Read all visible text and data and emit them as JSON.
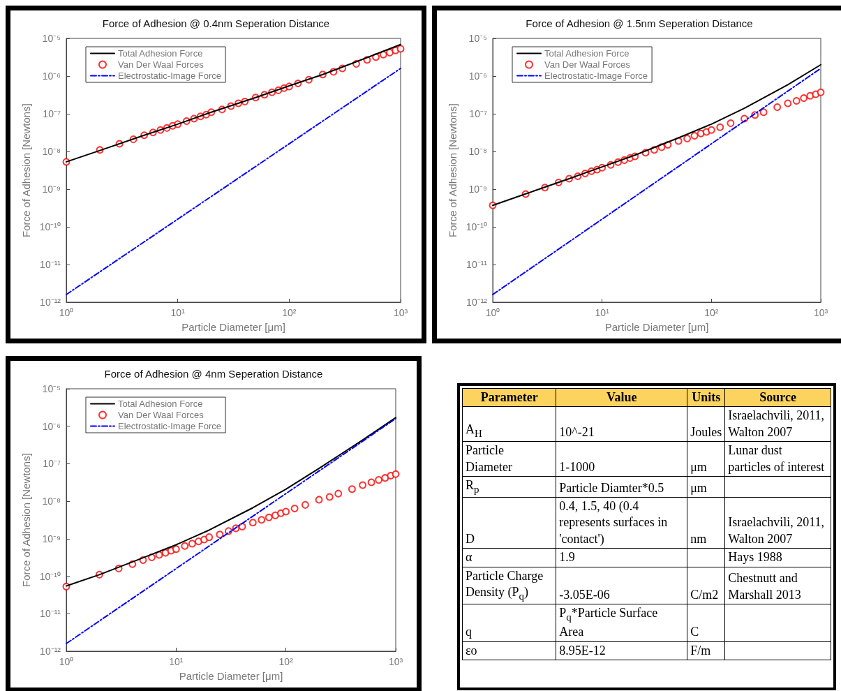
{
  "chart_data": [
    {
      "type": "line",
      "title": "Force of Adhesion @ 0.4nm Seperation Distance",
      "xlabel": "Particle Diameter [μm]",
      "ylabel": "Force of Adhesion [Newtons]",
      "log": "xy",
      "grid": false,
      "legend": "top left",
      "xlim": [
        1,
        1000
      ],
      "ylim": [
        1e-12,
        1e-05
      ],
      "xticks": [
        {
          "value": 1,
          "label": "10⁰"
        },
        {
          "value": 10,
          "label": "10¹"
        },
        {
          "value": 100,
          "label": "10²"
        },
        {
          "value": 1000,
          "label": "10³"
        }
      ],
      "yticks": [
        {
          "value": 1e-12,
          "label": "10⁻¹²"
        },
        {
          "value": 1e-11,
          "label": "10⁻¹¹"
        },
        {
          "value": 1e-10,
          "label": "10⁻¹⁰"
        },
        {
          "value": 1e-09,
          "label": "10⁻⁹"
        },
        {
          "value": 1e-08,
          "label": "10⁻⁸"
        },
        {
          "value": 1e-07,
          "label": "10⁻⁷"
        },
        {
          "value": 1e-06,
          "label": "10⁻⁶"
        },
        {
          "value": 1e-05,
          "label": "10⁻⁵"
        }
      ],
      "series": [
        {
          "name": "Total Adhesion Force",
          "type": "line",
          "line_style": "solid",
          "color": "#000000",
          "x": [
            1,
            2,
            5,
            10,
            20,
            50,
            100,
            200,
            500,
            1000
          ],
          "values": [
            5.3e-09,
            1.06e-08,
            2.7e-08,
            5.3e-08,
            1.1e-07,
            2.7e-07,
            5.5e-07,
            1.1e-06,
            3.1e-06,
            6.9e-06
          ]
        },
        {
          "name": "Van Der Waal Forces",
          "type": "scatter",
          "marker": "circle",
          "color": "#ff0000",
          "x": [
            1,
            2,
            3,
            4,
            5,
            6,
            7,
            8,
            9,
            10,
            12,
            14,
            16,
            18,
            20,
            25,
            30,
            35,
            40,
            50,
            60,
            70,
            80,
            90,
            100,
            120,
            150,
            200,
            250,
            300,
            400,
            500,
            600,
            700,
            800,
            900,
            1000
          ],
          "values": [
            5.3e-09,
            1.1e-08,
            1.6e-08,
            2.1e-08,
            2.7e-08,
            3.2e-08,
            3.7e-08,
            4.2e-08,
            4.8e-08,
            5.3e-08,
            6.4e-08,
            7.4e-08,
            8.5e-08,
            9.5e-08,
            1.1e-07,
            1.3e-07,
            1.6e-07,
            1.9e-07,
            2.1e-07,
            2.7e-07,
            3.2e-07,
            3.7e-07,
            4.2e-07,
            4.8e-07,
            5.3e-07,
            6.4e-07,
            8e-07,
            1.1e-06,
            1.3e-06,
            1.6e-06,
            2.1e-06,
            2.7e-06,
            3.2e-06,
            3.7e-06,
            4.2e-06,
            4.8e-06,
            5.3e-06
          ]
        },
        {
          "name": "Electrostatic-Image Force",
          "type": "line",
          "line_style": "dashed",
          "color": "#0000ff",
          "x": [
            1,
            1000
          ],
          "values": [
            1.6e-12,
            1.6e-06
          ]
        }
      ]
    },
    {
      "type": "line",
      "title": "Force of Adhesion @ 1.5nm Seperation Distance",
      "xlabel": "Particle Diameter [μm]",
      "ylabel": "Force of Adhesion [Newtons]",
      "log": "xy",
      "grid": false,
      "legend": "top left",
      "xlim": [
        1,
        1000
      ],
      "ylim": [
        1e-12,
        1e-05
      ],
      "xticks": [
        {
          "value": 1,
          "label": "10⁰"
        },
        {
          "value": 10,
          "label": "10¹"
        },
        {
          "value": 100,
          "label": "10²"
        },
        {
          "value": 1000,
          "label": "10³"
        }
      ],
      "yticks": [
        {
          "value": 1e-12,
          "label": "10⁻¹²"
        },
        {
          "value": 1e-11,
          "label": "10⁻¹¹"
        },
        {
          "value": 1e-10,
          "label": "10⁻¹⁰"
        },
        {
          "value": 1e-09,
          "label": "10⁻⁹"
        },
        {
          "value": 1e-08,
          "label": "10⁻⁸"
        },
        {
          "value": 1e-07,
          "label": "10⁻⁷"
        },
        {
          "value": 1e-06,
          "label": "10⁻⁶"
        },
        {
          "value": 1e-05,
          "label": "10⁻⁵"
        }
      ],
      "series": [
        {
          "name": "Total Adhesion Force",
          "type": "line",
          "line_style": "solid",
          "color": "#000000",
          "x": [
            1,
            2,
            5,
            10,
            20,
            50,
            100,
            200,
            500,
            1000
          ],
          "values": [
            3.7e-10,
            7.5e-10,
            1.9e-09,
            3.9e-09,
            8e-09,
            2.3e-08,
            5.3e-08,
            1.4e-07,
            5.9e-07,
            2e-06
          ]
        },
        {
          "name": "Van Der Waal Forces",
          "type": "scatter",
          "marker": "circle",
          "color": "#ff0000",
          "x": [
            1,
            2,
            3,
            4,
            5,
            6,
            7,
            8,
            9,
            10,
            12,
            14,
            16,
            18,
            20,
            25,
            30,
            35,
            40,
            50,
            60,
            70,
            80,
            90,
            100,
            120,
            150,
            200,
            250,
            300,
            400,
            500,
            600,
            700,
            800,
            900,
            1000
          ],
          "values": [
            3.7e-10,
            7.4e-10,
            1.1e-09,
            1.5e-09,
            1.9e-09,
            2.2e-09,
            2.6e-09,
            3e-09,
            3.3e-09,
            3.7e-09,
            4.4e-09,
            5.2e-09,
            5.9e-09,
            6.7e-09,
            7.4e-09,
            9.3e-09,
            1.1e-08,
            1.3e-08,
            1.5e-08,
            1.9e-08,
            2.2e-08,
            2.6e-08,
            3e-08,
            3.3e-08,
            3.7e-08,
            4.4e-08,
            5.6e-08,
            7.4e-08,
            9.3e-08,
            1.1e-07,
            1.5e-07,
            1.9e-07,
            2.2e-07,
            2.6e-07,
            3e-07,
            3.3e-07,
            3.7e-07
          ]
        },
        {
          "name": "Electrostatic-Image Force",
          "type": "line",
          "line_style": "dashed",
          "color": "#0000ff",
          "x": [
            1,
            1000
          ],
          "values": [
            1.6e-12,
            1.6e-06
          ]
        }
      ]
    },
    {
      "type": "line",
      "title": "Force of Adhesion @ 4nm Seperation Distance",
      "xlabel": "Particle Diameter [μm]",
      "ylabel": "Force of Adhesion [Newtons]",
      "log": "xy",
      "grid": false,
      "legend": "top left",
      "xlim": [
        1,
        1000
      ],
      "ylim": [
        1e-12,
        1e-05
      ],
      "xticks": [
        {
          "value": 1,
          "label": "10⁰"
        },
        {
          "value": 10,
          "label": "10¹"
        },
        {
          "value": 100,
          "label": "10²"
        },
        {
          "value": 1000,
          "label": "10³"
        }
      ],
      "yticks": [
        {
          "value": 1e-12,
          "label": "10⁻¹²"
        },
        {
          "value": 1e-11,
          "label": "10⁻¹¹"
        },
        {
          "value": 1e-10,
          "label": "10⁻¹⁰"
        },
        {
          "value": 1e-09,
          "label": "10⁻⁹"
        },
        {
          "value": 1e-08,
          "label": "10⁻⁸"
        },
        {
          "value": 1e-07,
          "label": "10⁻⁷"
        },
        {
          "value": 1e-06,
          "label": "10⁻⁶"
        },
        {
          "value": 1e-05,
          "label": "10⁻⁵"
        }
      ],
      "series": [
        {
          "name": "Total Adhesion Force",
          "type": "line",
          "line_style": "solid",
          "color": "#000000",
          "x": [
            1,
            2,
            5,
            10,
            20,
            50,
            100,
            200,
            500,
            1000
          ],
          "values": [
            5.5e-11,
            1.1e-10,
            3.1e-10,
            6.9e-10,
            1.7e-09,
            6.7e-09,
            2.1e-08,
            7.5e-08,
            4.3e-07,
            1.7e-06
          ]
        },
        {
          "name": "Van Der Waal Forces",
          "type": "scatter",
          "marker": "circle",
          "color": "#ff0000",
          "x": [
            1,
            2,
            3,
            4,
            5,
            6,
            7,
            8,
            9,
            10,
            12,
            14,
            16,
            18,
            20,
            25,
            30,
            35,
            40,
            50,
            60,
            70,
            80,
            90,
            100,
            120,
            150,
            200,
            250,
            300,
            400,
            500,
            600,
            700,
            800,
            900,
            1000
          ],
          "values": [
            5.3e-11,
            1.1e-10,
            1.6e-10,
            2.1e-10,
            2.7e-10,
            3.2e-10,
            3.7e-10,
            4.2e-10,
            4.8e-10,
            5.3e-10,
            6.4e-10,
            7.4e-10,
            8.5e-10,
            9.5e-10,
            1.1e-09,
            1.3e-09,
            1.6e-09,
            1.9e-09,
            2.1e-09,
            2.7e-09,
            3.2e-09,
            3.7e-09,
            4.2e-09,
            4.8e-09,
            5.3e-09,
            6.4e-09,
            8e-09,
            1.1e-08,
            1.3e-08,
            1.6e-08,
            2.1e-08,
            2.7e-08,
            3.2e-08,
            3.7e-08,
            4.2e-08,
            4.8e-08,
            5.3e-08
          ]
        },
        {
          "name": "Electrostatic-Image Force",
          "type": "line",
          "line_style": "dashed",
          "color": "#0000ff",
          "x": [
            1,
            1000
          ],
          "values": [
            1.6e-12,
            1.6e-06
          ]
        }
      ]
    },
    {
      "type": "other",
      "color": "#fcd35f",
      "categories": [
        "Parameter",
        "Value",
        "Units",
        "Source"
      ],
      "cell_labels": [
        [
          "A$_{H}$",
          "10^-21",
          "Joules",
          "Israelachvili, 2011, Walton 2007"
        ],
        [
          "Particle Diameter",
          "1-1000",
          "μm",
          "Lunar dust particles of interest"
        ],
        [
          "R$_{p}$",
          "Particle Diamter*0.5",
          "μm",
          null
        ],
        [
          "D",
          "0.4, 1.5, 40 (0.4 represents surfaces in 'contact')",
          "nm",
          "Israelachvili, 2011, Walton 2007"
        ],
        [
          "α",
          "1.9",
          null,
          "Hays 1988"
        ],
        [
          "Particle Charge Density (P$_{q}$)",
          "-3.05E-06",
          "C/m2",
          "Chestnutt and Marshall 2013"
        ],
        [
          "q",
          "P$_{q}$*Particle Surface Area",
          "C",
          null
        ],
        [
          "εo",
          "8.95E-12",
          "F/m",
          null
        ]
      ]
    }
  ]
}
